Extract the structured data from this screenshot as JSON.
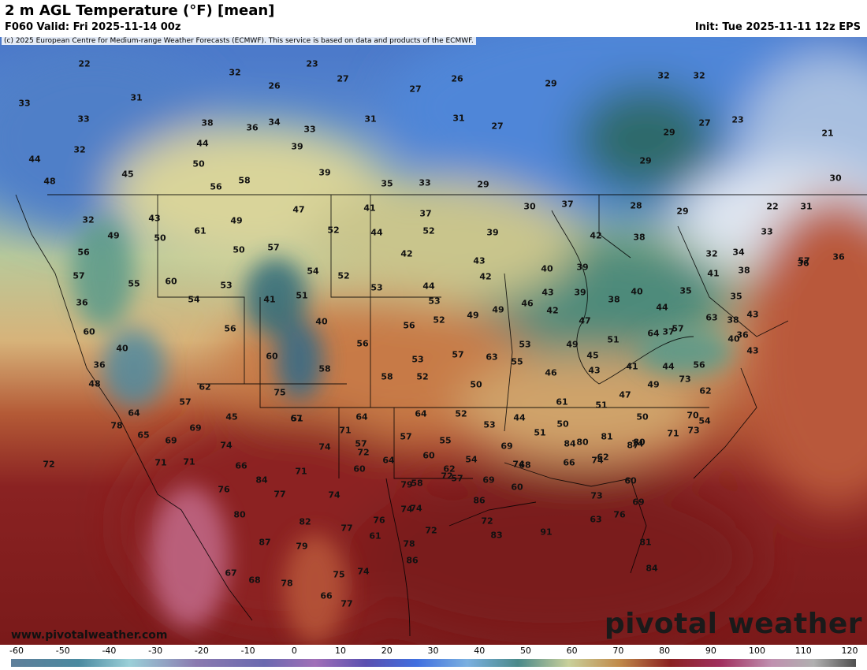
{
  "header": {
    "title": "2 m AGL Temperature (°F) [mean]",
    "valid": "F060 Valid: Fri 2025-11-14 00z",
    "init": "Init: Tue 2025-11-11 12z EPS"
  },
  "map": {
    "copyright": "(c) 2025 European Centre for Medium-range Weather Forecasts (ECMWF). This service is based on data and products of the ECMWF.",
    "website": "www.pivotalweather.com",
    "logo": "pivotal weather",
    "labels": [
      "22",
      "23",
      "32",
      "27",
      "26",
      "26",
      "31",
      "33",
      "27",
      "34",
      "38",
      "36",
      "33",
      "31",
      "31",
      "27",
      "29",
      "32",
      "32",
      "27",
      "23",
      "29",
      "21",
      "33",
      "44",
      "39",
      "32",
      "44",
      "50",
      "39",
      "45",
      "56",
      "58",
      "35",
      "33",
      "29",
      "29",
      "30",
      "48",
      "47",
      "41",
      "37",
      "30",
      "37",
      "28",
      "29",
      "22",
      "32",
      "43",
      "49",
      "61",
      "52",
      "39",
      "42",
      "38",
      "33",
      "31",
      "49",
      "50",
      "52",
      "44",
      "57",
      "42",
      "43",
      "32",
      "34",
      "36",
      "36",
      "56",
      "50",
      "57",
      "54",
      "52",
      "40",
      "39",
      "38",
      "57",
      "55",
      "60",
      "53",
      "41",
      "51",
      "53",
      "44",
      "42",
      "43",
      "39",
      "40",
      "35",
      "41",
      "36",
      "54",
      "60",
      "56",
      "52",
      "53",
      "49",
      "49",
      "46",
      "42",
      "44",
      "35",
      "38",
      "40",
      "56",
      "63",
      "37",
      "43",
      "51",
      "64",
      "57",
      "47",
      "36",
      "40",
      "38",
      "36",
      "40",
      "60",
      "53",
      "58",
      "56",
      "63",
      "55",
      "53",
      "49",
      "45",
      "43",
      "48",
      "57",
      "52",
      "58",
      "50",
      "46",
      "43",
      "41",
      "44",
      "56",
      "62",
      "72",
      "75",
      "62",
      "57",
      "51",
      "44",
      "45",
      "47",
      "49",
      "73",
      "51",
      "64",
      "67",
      "64",
      "64",
      "52",
      "53",
      "50",
      "50",
      "61",
      "70",
      "78",
      "65",
      "69",
      "71",
      "57",
      "57",
      "55",
      "51",
      "80",
      "81",
      "71",
      "69",
      "74",
      "74",
      "72",
      "64",
      "60",
      "54",
      "69",
      "84",
      "80",
      "73",
      "71",
      "71",
      "66",
      "60",
      "58",
      "57",
      "74",
      "74",
      "74",
      "54",
      "84",
      "71",
      "74",
      "72",
      "69",
      "68",
      "66",
      "62",
      "87",
      "76",
      "77",
      "79",
      "62",
      "60",
      "86",
      "73",
      "80",
      "82",
      "74",
      "76",
      "74",
      "72",
      "63",
      "60",
      "87",
      "79",
      "78",
      "77",
      "61",
      "72",
      "83",
      "91",
      "76",
      "69",
      "67",
      "75",
      "74",
      "86",
      "81",
      "84",
      "68",
      "78",
      "66",
      "77"
    ]
  },
  "colorbar": {
    "ticks": [
      "-60",
      "-50",
      "-40",
      "-30",
      "-20",
      "-10",
      "0",
      "10",
      "20",
      "30",
      "40",
      "50",
      "60",
      "70",
      "80",
      "90",
      "100",
      "110",
      "120"
    ]
  }
}
